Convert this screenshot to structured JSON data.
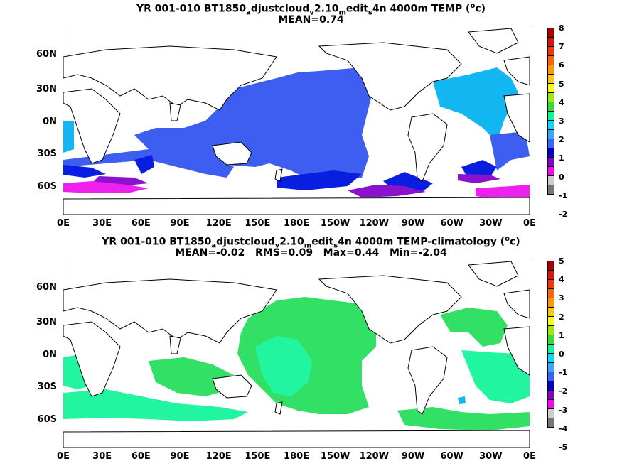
{
  "panel1": {
    "title_line1": [
      "YR 001-010 BT1850",
      "a",
      "djustcloud",
      "v",
      "2.10",
      "m",
      "edit",
      "s",
      "4n 4000m TEMP (",
      "o",
      "c)"
    ],
    "title_line2": "MEAN=0.74",
    "colorbar_labels": [
      "8",
      "7",
      "6",
      "5",
      "4",
      "3",
      "2",
      "1",
      "0",
      "-1",
      "-2"
    ],
    "colorbar_colors": [
      "#cc0000",
      "#ee2200",
      "#ff5500",
      "#ff8800",
      "#ffcc00",
      "#ffff00",
      "#66dd00",
      "#00ee55",
      "#00ffcc",
      "#00ccff",
      "#3399ff",
      "#3355ff",
      "#0000dd",
      "#6600cc",
      "#ff00ff",
      "#cccccc",
      "#888888"
    ]
  },
  "panel2": {
    "title_line1": [
      "YR 001-010 BT1850",
      "a",
      "djustcloud",
      "v",
      "2.10",
      "m",
      "edit",
      "s",
      "4n 4000m TEMP-climatology (",
      "o",
      "c)"
    ],
    "title_line2": "MEAN=-0.02   RMS=0.09   Max=0.44   Min=-2.04",
    "colorbar_labels": [
      "5",
      "4",
      "3",
      "2",
      "1",
      "0",
      "-1",
      "-2",
      "-3",
      "-4",
      "-5"
    ],
    "colorbar_colors": [
      "#cc0000",
      "#ee2200",
      "#ff5500",
      "#ff8800",
      "#ffcc00",
      "#ffff00",
      "#66dd00",
      "#00ee55",
      "#00ffcc",
      "#00ccff",
      "#3399ff",
      "#3355ff",
      "#0000dd",
      "#6600cc",
      "#ff00ff",
      "#cccccc",
      "#888888"
    ]
  },
  "x_ticks": [
    "0E",
    "30E",
    "60E",
    "90E",
    "120E",
    "150E",
    "180E",
    "150W",
    "120W",
    "90W",
    "60W",
    "30W",
    "0E"
  ],
  "y_ticks": [
    "60N",
    "30N",
    "0N",
    "30S",
    "60S"
  ]
}
